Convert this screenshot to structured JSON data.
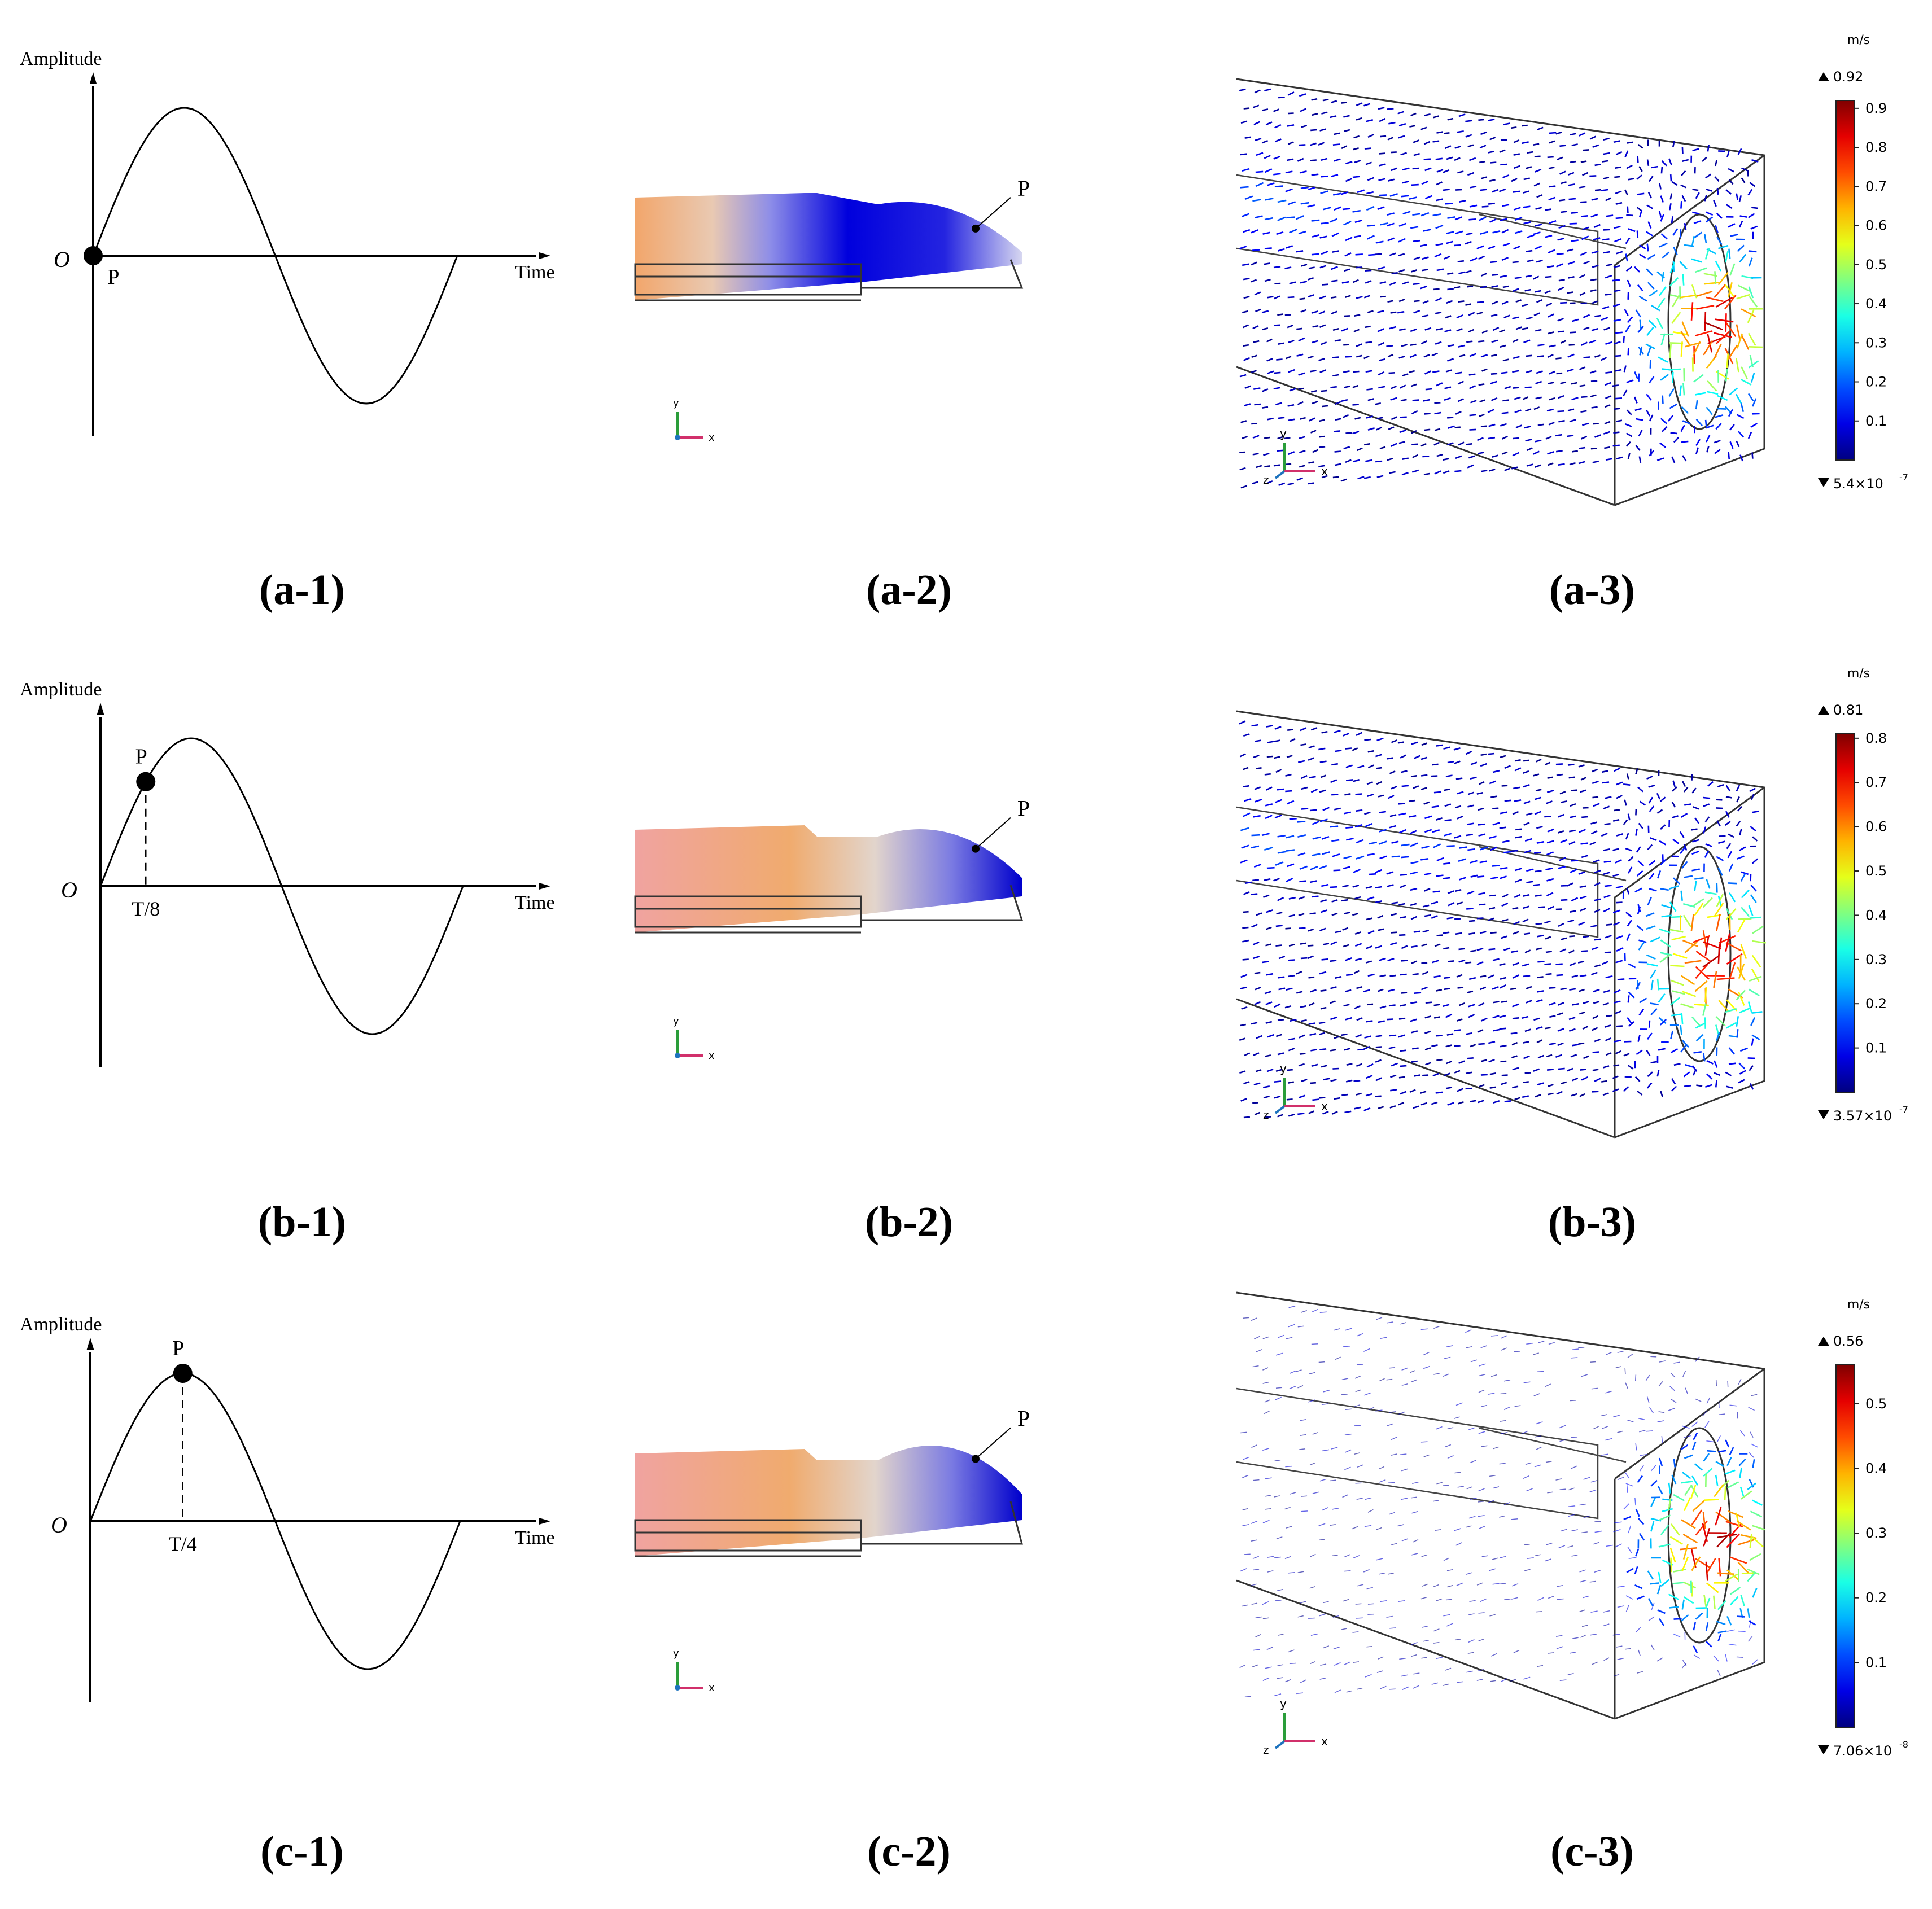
{
  "rows": [
    {
      "id": "a",
      "marker_phase": 0,
      "marker_label": "P",
      "tick_label": "",
      "panel_labels": [
        "(a-1)",
        "(a-2)",
        "(a-3)"
      ],
      "flap_tilt": 0.25,
      "colorbar": {
        "unit": "m/s",
        "max": "0.92",
        "min": "5.4×10",
        "min_exp": "-7",
        "ticks": [
          "0.9",
          "0.8",
          "0.7",
          "0.6",
          "0.5",
          "0.4",
          "0.3",
          "0.2",
          "0.1"
        ],
        "tick_values": [
          0.9,
          0.8,
          0.7,
          0.6,
          0.5,
          0.4,
          0.3,
          0.2,
          0.1
        ],
        "vmax": 0.92
      }
    },
    {
      "id": "b",
      "marker_phase": 0.125,
      "marker_label": "P",
      "tick_label": "T/8",
      "panel_labels": [
        "(b-1)",
        "(b-2)",
        "(b-3)"
      ],
      "flap_tilt": 0.6,
      "colorbar": {
        "unit": "m/s",
        "max": "0.81",
        "min": "3.57×10",
        "min_exp": "-7",
        "ticks": [
          "0.8",
          "0.7",
          "0.6",
          "0.5",
          "0.4",
          "0.3",
          "0.2",
          "0.1"
        ],
        "tick_values": [
          0.8,
          0.7,
          0.6,
          0.5,
          0.4,
          0.3,
          0.2,
          0.1
        ],
        "vmax": 0.81
      }
    },
    {
      "id": "c",
      "marker_phase": 0.25,
      "marker_label": "P",
      "tick_label": "T/4",
      "panel_labels": [
        "(c-1)",
        "(c-2)",
        "(c-3)"
      ],
      "flap_tilt": 1.0,
      "colorbar": {
        "unit": "m/s",
        "max": "0.56",
        "min": "7.06×10",
        "min_exp": "-8",
        "ticks": [
          "0.5",
          "0.4",
          "0.3",
          "0.2",
          "0.1"
        ],
        "tick_values": [
          0.5,
          0.4,
          0.3,
          0.2,
          0.1
        ],
        "vmax": 0.56
      }
    }
  ],
  "wave_axis": {
    "ylabel": "Amplitude",
    "xlabel": "Time",
    "origin": "O"
  },
  "point_label": "P",
  "axes_triad": {
    "x": "x",
    "y": "y",
    "z": "z"
  },
  "colors": {
    "jet_low": "#00008f",
    "jet_high": "#7f0000",
    "warm": "#f2a66b",
    "cool": "#0a0ad6"
  }
}
